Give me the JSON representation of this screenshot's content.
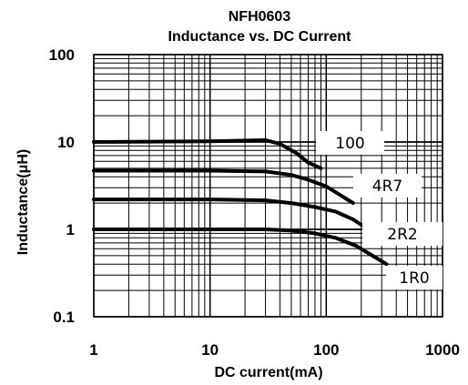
{
  "chart_data": {
    "type": "line",
    "title": "NFH0603",
    "subtitle": "Inductance vs. DC Current",
    "xlabel": "DC current(mA)",
    "ylabel": "Inductance(μH)",
    "x_scale": "log",
    "y_scale": "log",
    "xlim": [
      1,
      1000
    ],
    "ylim": [
      0.1,
      100
    ],
    "x_ticks": [
      "1",
      "10",
      "100",
      "1000"
    ],
    "y_ticks": [
      "100",
      "10",
      "1",
      "0.1"
    ],
    "grid": true,
    "series": [
      {
        "name": "100",
        "x": [
          1,
          10,
          30,
          40,
          55,
          70,
          90
        ],
        "y": [
          10,
          10.2,
          10.5,
          9.5,
          7.5,
          5.8,
          5.0
        ]
      },
      {
        "name": "4R7",
        "x": [
          1,
          10,
          30,
          50,
          70,
          100,
          130,
          170
        ],
        "y": [
          4.7,
          4.7,
          4.6,
          4.2,
          3.7,
          3.1,
          2.5,
          2.0
        ]
      },
      {
        "name": "2R2",
        "x": [
          1,
          10,
          30,
          50,
          80,
          120,
          170,
          230
        ],
        "y": [
          2.2,
          2.2,
          2.15,
          2.0,
          1.8,
          1.6,
          1.3,
          1.0
        ]
      },
      {
        "name": "1R0",
        "x": [
          1,
          10,
          30,
          50,
          80,
          120,
          180,
          250,
          330
        ],
        "y": [
          1.0,
          1.0,
          1.0,
          0.97,
          0.9,
          0.8,
          0.65,
          0.5,
          0.4
        ]
      }
    ]
  }
}
